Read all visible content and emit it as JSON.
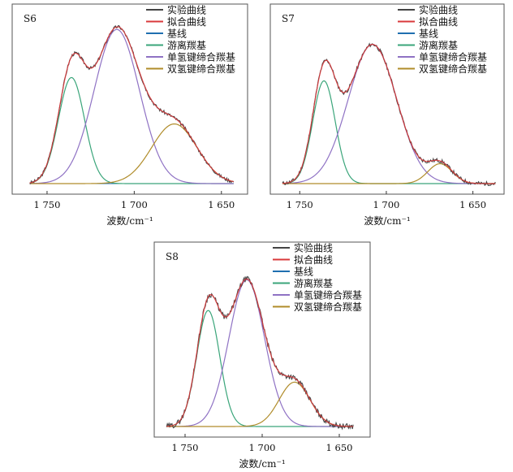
{
  "chart_data": [
    {
      "type": "line",
      "panel_label": "S6",
      "xlabel": "波数/cm⁻¹",
      "x_reversed": true,
      "xlim": [
        1770,
        1635
      ],
      "ylim": [
        0,
        1
      ],
      "grid": false,
      "legend_position": "top-right",
      "x_ticks": [
        1750,
        1700,
        1650
      ],
      "x_tick_labels": [
        "1 750",
        "1 700",
        "1 650"
      ],
      "components": [
        {
          "name": "游离羰基",
          "center": 1736,
          "height": 0.64,
          "width": 7.5
        },
        {
          "name": "单氢键缔合羰基",
          "center": 1710,
          "height": 0.93,
          "width": 13
        },
        {
          "name": "双氢键缔合羰基",
          "center": 1677,
          "height": 0.36,
          "width": 13
        }
      ],
      "baseline": 0.0,
      "x_data_range": [
        1760,
        1643
      ],
      "series": [
        {
          "name": "实验曲线",
          "color": "#444444"
        },
        {
          "name": "拟合曲线",
          "color": "#d9393b"
        },
        {
          "name": "基线",
          "color": "#1f6fb0"
        },
        {
          "name": "游离羰基",
          "color": "#3aa57a"
        },
        {
          "name": "单氢键缔合羰基",
          "color": "#8f72c4"
        },
        {
          "name": "双氢键缔合羰基",
          "color": "#b08c2a"
        }
      ]
    },
    {
      "type": "line",
      "panel_label": "S7",
      "xlabel": "波数/cm⁻¹",
      "x_reversed": true,
      "xlim": [
        1767,
        1632
      ],
      "ylim": [
        0,
        1
      ],
      "grid": false,
      "legend_position": "top-right",
      "x_ticks": [
        1750,
        1700,
        1650
      ],
      "x_tick_labels": [
        "1 750",
        "1 700",
        "1 650"
      ],
      "components": [
        {
          "name": "游离羰基",
          "center": 1736,
          "height": 0.62,
          "width": 6.5
        },
        {
          "name": "单氢键缔合羰基",
          "center": 1708,
          "height": 0.84,
          "width": 14
        },
        {
          "name": "双氢键缔合羰基",
          "center": 1669,
          "height": 0.12,
          "width": 7
        }
      ],
      "baseline": 0.0,
      "x_data_range": [
        1760,
        1637
      ],
      "series": [
        {
          "name": "实验曲线",
          "color": "#444444"
        },
        {
          "name": "拟合曲线",
          "color": "#d9393b"
        },
        {
          "name": "基线",
          "color": "#1f6fb0"
        },
        {
          "name": "游离羰基",
          "color": "#3aa57a"
        },
        {
          "name": "单氢键缔合羰基",
          "color": "#8f72c4"
        },
        {
          "name": "双氢键缔合羰基",
          "color": "#b08c2a"
        }
      ]
    },
    {
      "type": "line",
      "panel_label": "S8",
      "xlabel": "波数/cm⁻¹",
      "x_reversed": true,
      "xlim": [
        1770,
        1630
      ],
      "ylim": [
        0,
        1
      ],
      "grid": false,
      "legend_position": "top-right",
      "x_ticks": [
        1750,
        1700,
        1650
      ],
      "x_tick_labels": [
        "1 750",
        "1 700",
        "1 650"
      ],
      "components": [
        {
          "name": "游离羰基",
          "center": 1735,
          "height": 0.68,
          "width": 7.5
        },
        {
          "name": "单氢键缔合羰基",
          "center": 1710,
          "height": 0.86,
          "width": 11.5
        },
        {
          "name": "双氢键缔合羰基",
          "center": 1679,
          "height": 0.26,
          "width": 10
        }
      ],
      "baseline": 0.0,
      "x_data_range": [
        1762,
        1641
      ],
      "series": [
        {
          "name": "实验曲线",
          "color": "#444444"
        },
        {
          "name": "拟合曲线",
          "color": "#d9393b"
        },
        {
          "name": "基线",
          "color": "#1f6fb0"
        },
        {
          "name": "游离羰基",
          "color": "#3aa57a"
        },
        {
          "name": "单氢键缔合羰基",
          "color": "#8f72c4"
        },
        {
          "name": "双氢键缔合羰基",
          "color": "#b08c2a"
        }
      ]
    }
  ]
}
